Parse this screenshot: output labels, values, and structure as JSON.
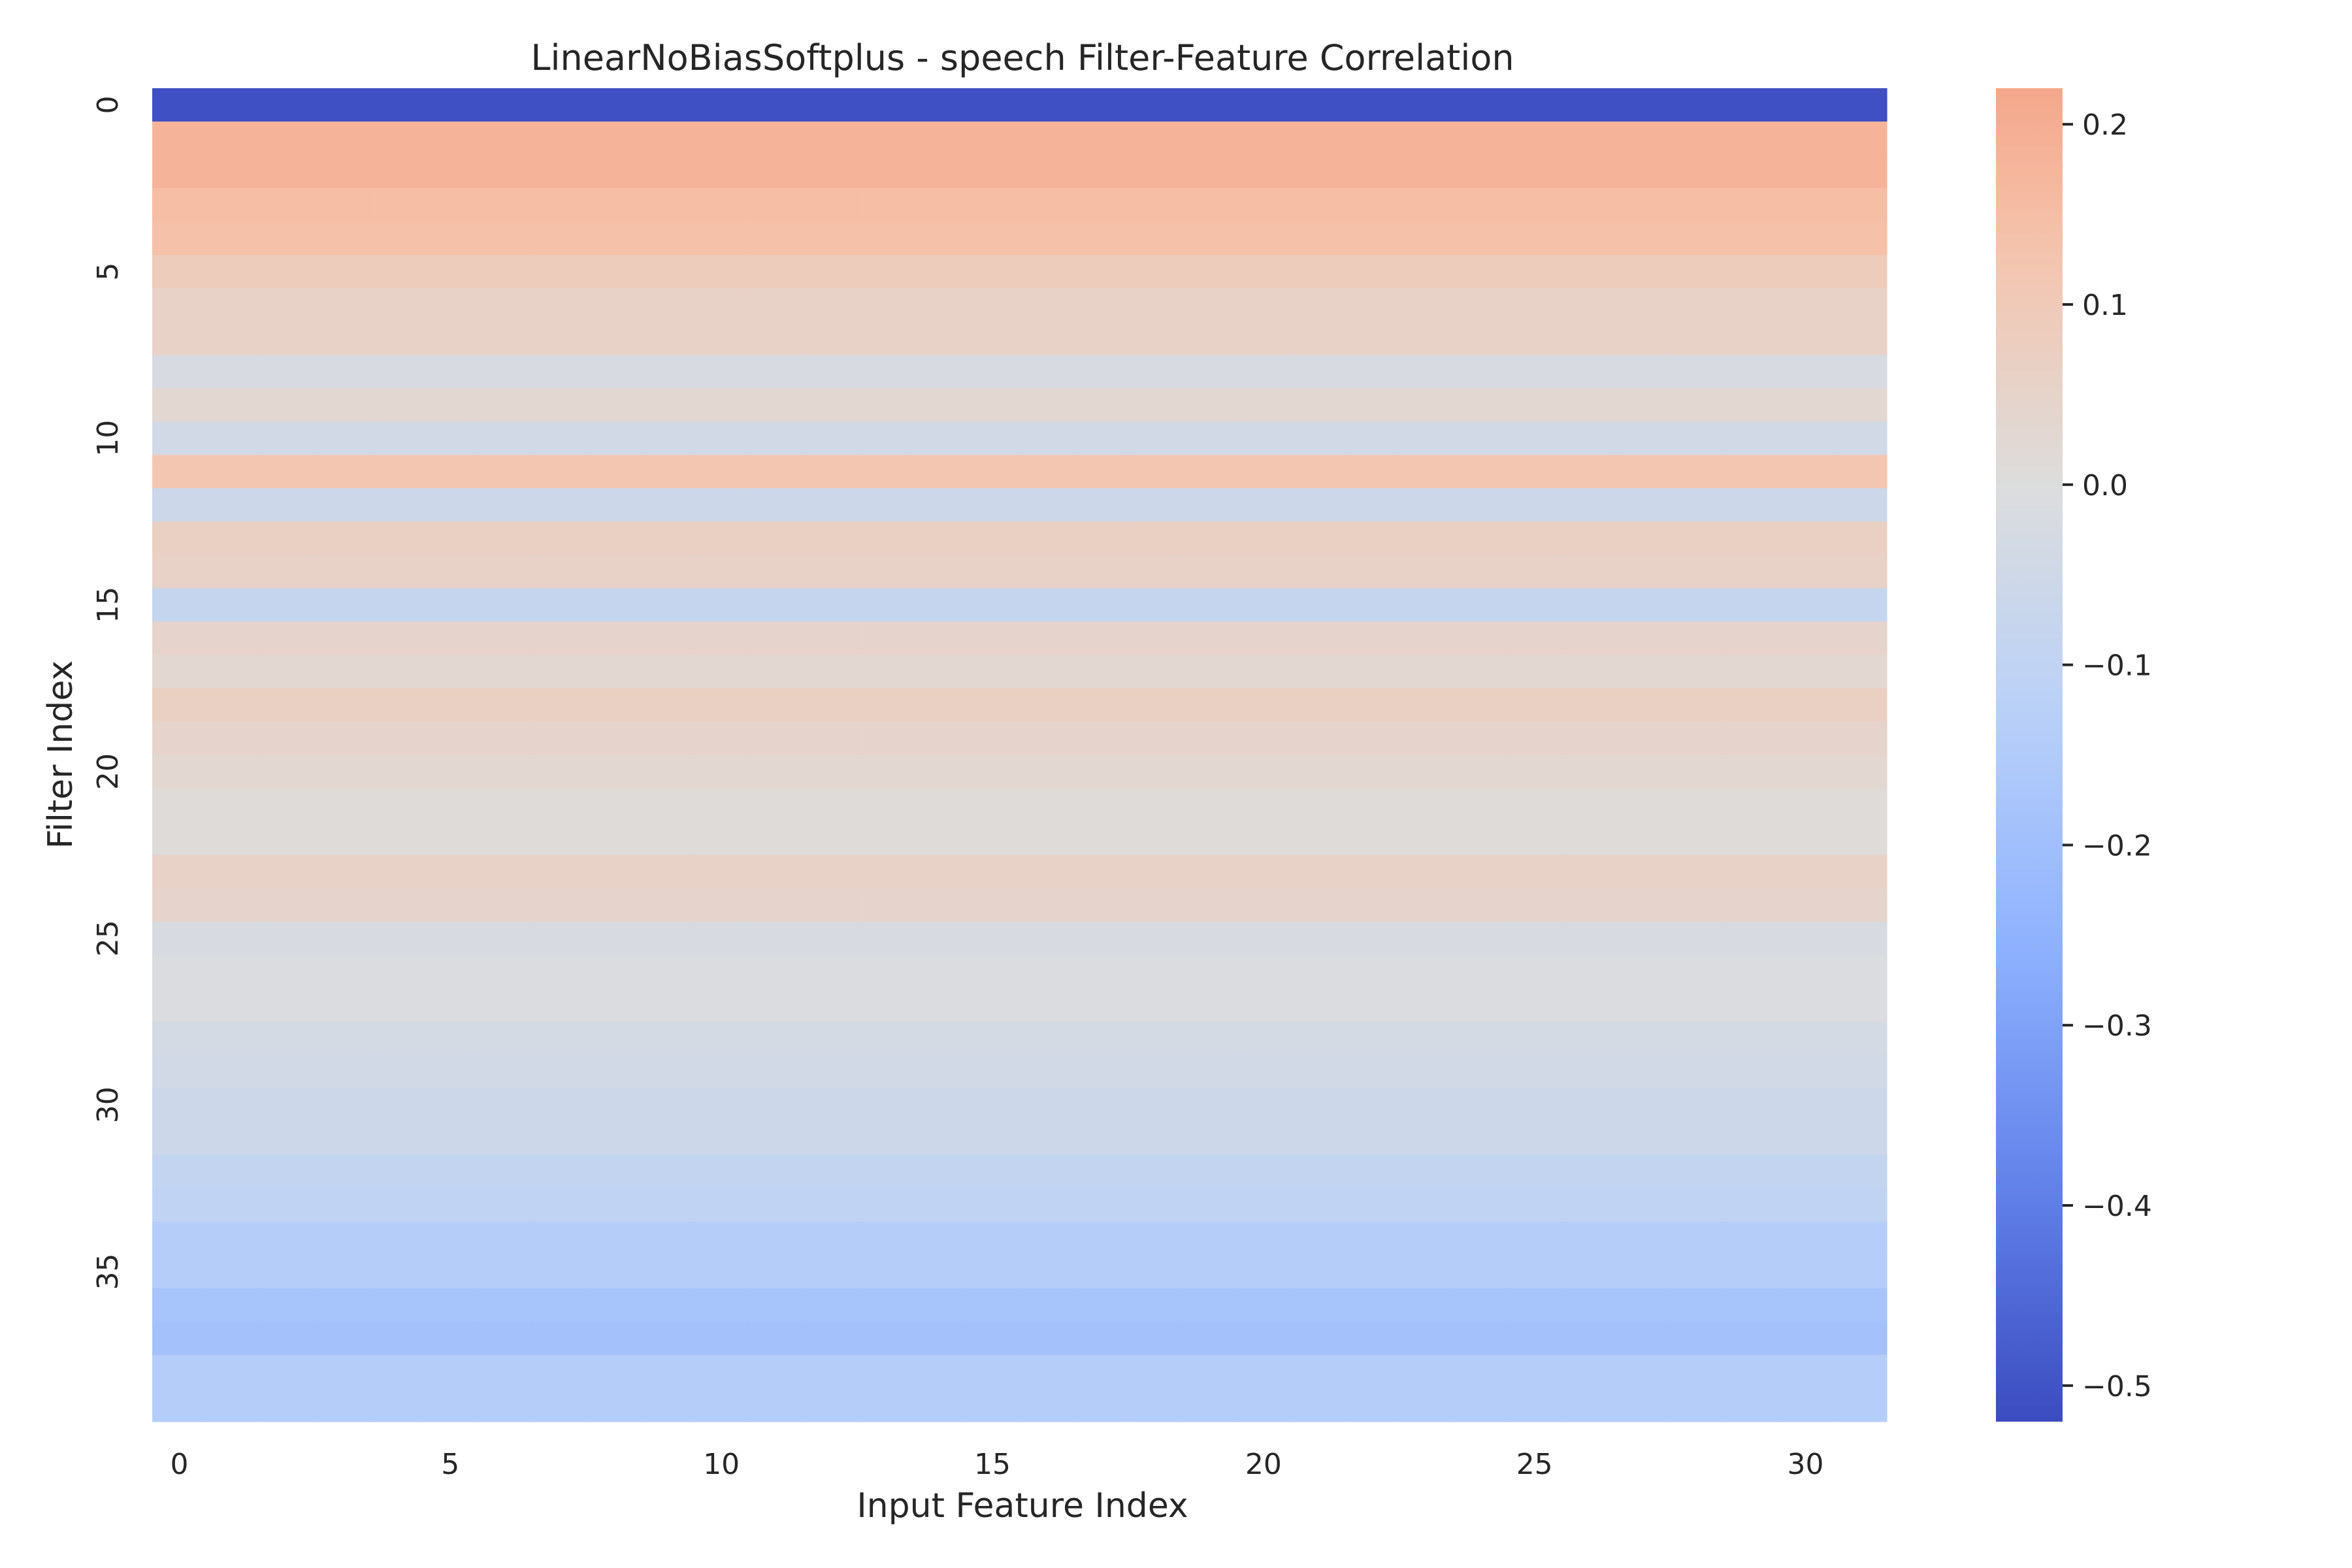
{
  "chart_data": {
    "type": "heatmap",
    "title": "LinearNoBiasSoftplus - speech Filter-Feature Correlation",
    "xlabel": "Input Feature Index",
    "ylabel": "Filter Index",
    "n_cols": 32,
    "x_ticks": [
      0,
      5,
      10,
      15,
      20,
      25,
      30
    ],
    "y_ticks": [
      0,
      5,
      10,
      15,
      20,
      25,
      30,
      35
    ],
    "row_values": [
      -0.51,
      0.18,
      0.18,
      0.15,
      0.14,
      0.09,
      0.06,
      0.06,
      -0.02,
      0.03,
      -0.04,
      0.12,
      -0.06,
      0.07,
      0.06,
      -0.08,
      0.05,
      0.03,
      0.07,
      0.05,
      0.03,
      0.01,
      0.01,
      0.06,
      0.05,
      -0.02,
      -0.01,
      -0.01,
      -0.03,
      -0.04,
      -0.06,
      -0.06,
      -0.09,
      -0.1,
      -0.14,
      -0.14,
      -0.18,
      -0.19,
      -0.14,
      -0.14
    ],
    "colormap": "coolwarm",
    "vmin": -0.52,
    "vmax": 0.22,
    "colorbar_ticks": [
      0.2,
      0.1,
      0.0,
      -0.1,
      -0.2,
      -0.3,
      -0.4,
      -0.5
    ],
    "colorbar_tick_labels": [
      "0.2",
      "0.1",
      "0.0",
      "−0.1",
      "−0.2",
      "−0.3",
      "−0.4",
      "−0.5"
    ],
    "grid": false
  }
}
